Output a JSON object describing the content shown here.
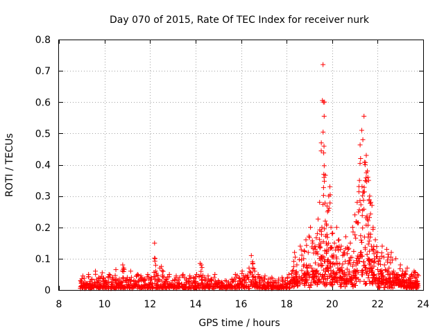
{
  "chart_data": {
    "type": "scatter",
    "title": "Day 070 of 2015, Rate Of TEC Index for receiver nurk",
    "xlabel": "GPS time / hours",
    "ylabel": "ROTI / TECUs",
    "xlim": [
      8,
      24
    ],
    "ylim": [
      0,
      0.8
    ],
    "x_ticks": [
      8,
      10,
      12,
      14,
      16,
      18,
      20,
      22,
      24
    ],
    "y_ticks": [
      0,
      0.1,
      0.2,
      0.3,
      0.4,
      0.5,
      0.6,
      0.7,
      0.8
    ],
    "x_tick_labels": [
      "8",
      "10",
      "12",
      "14",
      "16",
      "18",
      "20",
      "22",
      "24"
    ],
    "y_tick_labels": [
      "0",
      "0.1",
      "0.2",
      "0.3",
      "0.4",
      "0.5",
      "0.6",
      "0.7",
      "0.8"
    ],
    "grid": true,
    "marker": "+",
    "color": "#ff0000",
    "series": [
      {
        "x": [
          8.95,
          9.05,
          9.15,
          9.3,
          9.45,
          9.6,
          9.75,
          9.9,
          10.05,
          10.2,
          10.35,
          10.5,
          10.65,
          10.8,
          10.85,
          11.0,
          11.15,
          11.3,
          11.45,
          11.6,
          11.75,
          11.9,
          12.05,
          12.2,
          12.25,
          12.35,
          12.5,
          12.6,
          12.7,
          12.85,
          13.0,
          13.15,
          13.3,
          13.45,
          13.6,
          13.75,
          13.9,
          14.05,
          14.2,
          14.25,
          14.4,
          14.55,
          14.7,
          14.85,
          15.0,
          15.15,
          15.3,
          15.45,
          15.6,
          15.75,
          15.9,
          16.05,
          16.2,
          16.35,
          16.45,
          16.5,
          16.6,
          16.75,
          16.9,
          17.05,
          17.2,
          17.35,
          17.5,
          17.65,
          17.8,
          17.95,
          18.1,
          18.25,
          18.35,
          18.45,
          18.6,
          18.75,
          18.85,
          18.95,
          19.05,
          19.15,
          19.25,
          19.35,
          19.45,
          19.5,
          19.55,
          19.6,
          19.62,
          19.65,
          19.7,
          19.75,
          19.8,
          19.85,
          19.9,
          19.95,
          20.0,
          20.1,
          20.2,
          20.3,
          20.4,
          20.5,
          20.6,
          20.7,
          20.8,
          20.9,
          21.0,
          21.1,
          21.2,
          21.25,
          21.3,
          21.35,
          21.4,
          21.45,
          21.5,
          21.55,
          21.6,
          21.65,
          21.7,
          21.75,
          21.8,
          21.9,
          22.0,
          22.1,
          22.2,
          22.3,
          22.4,
          22.5,
          22.6,
          22.7,
          22.8,
          22.9,
          23.0,
          23.1,
          23.2,
          23.3,
          23.4,
          23.5,
          23.6,
          23.7,
          23.75
        ],
        "y": [
          0.03,
          0.045,
          0.025,
          0.05,
          0.035,
          0.06,
          0.04,
          0.055,
          0.03,
          0.05,
          0.04,
          0.065,
          0.035,
          0.08,
          0.07,
          0.04,
          0.06,
          0.03,
          0.05,
          0.045,
          0.035,
          0.05,
          0.04,
          0.15,
          0.06,
          0.045,
          0.075,
          0.04,
          0.035,
          0.05,
          0.03,
          0.045,
          0.04,
          0.05,
          0.035,
          0.045,
          0.04,
          0.05,
          0.085,
          0.08,
          0.04,
          0.045,
          0.035,
          0.05,
          0.03,
          0.025,
          0.03,
          0.025,
          0.035,
          0.05,
          0.04,
          0.06,
          0.045,
          0.07,
          0.11,
          0.09,
          0.06,
          0.05,
          0.04,
          0.045,
          0.035,
          0.04,
          0.03,
          0.035,
          0.04,
          0.03,
          0.05,
          0.06,
          0.12,
          0.08,
          0.14,
          0.1,
          0.16,
          0.12,
          0.2,
          0.15,
          0.13,
          0.18,
          0.28,
          0.15,
          0.2,
          0.72,
          0.6,
          0.555,
          0.22,
          0.15,
          0.25,
          0.3,
          0.33,
          0.2,
          0.18,
          0.15,
          0.2,
          0.16,
          0.14,
          0.12,
          0.17,
          0.13,
          0.15,
          0.2,
          0.24,
          0.28,
          0.35,
          0.42,
          0.51,
          0.48,
          0.555,
          0.4,
          0.43,
          0.38,
          0.35,
          0.3,
          0.28,
          0.27,
          0.2,
          0.16,
          0.12,
          0.1,
          0.14,
          0.08,
          0.13,
          0.07,
          0.12,
          0.06,
          0.1,
          0.05,
          0.08,
          0.06,
          0.05,
          0.07,
          0.04,
          0.05,
          0.06,
          0.04,
          0.05
        ]
      },
      {
        "x": [
          8.95,
          9.1,
          9.25,
          9.4,
          9.55,
          9.7,
          9.85,
          10.0,
          10.15,
          10.3,
          10.45,
          10.6,
          10.75,
          10.9,
          11.05,
          11.2,
          11.35,
          11.5,
          11.65,
          11.8,
          11.95,
          12.1,
          12.3,
          12.45,
          12.6,
          12.8,
          12.95,
          13.1,
          13.25,
          13.4,
          13.55,
          13.7,
          13.85,
          14.0,
          14.15,
          14.35,
          14.5,
          14.65,
          14.8,
          14.95,
          15.1,
          15.25,
          15.4,
          15.55,
          15.7,
          15.85,
          16.0,
          16.15,
          16.3,
          16.55,
          16.7,
          16.85,
          17.0,
          17.15,
          17.3,
          17.45,
          17.6,
          17.75,
          17.9,
          18.05,
          18.2,
          18.3,
          18.4,
          18.5,
          18.65,
          18.8,
          18.9,
          19.0,
          19.1,
          19.2,
          19.3,
          19.4,
          19.58,
          19.68,
          19.78,
          19.88,
          19.98,
          20.05,
          20.15,
          20.25,
          20.35,
          20.45,
          20.55,
          20.65,
          20.75,
          20.85,
          20.95,
          21.05,
          21.15,
          21.28,
          21.38,
          21.48,
          21.58,
          21.68,
          21.78,
          21.85,
          21.95,
          22.05,
          22.15,
          22.25,
          22.35,
          22.45,
          22.55,
          22.65,
          22.75,
          22.85,
          22.95,
          23.05,
          23.15,
          23.25,
          23.35,
          23.45,
          23.55,
          23.65,
          23.72
        ],
        "y": [
          0.01,
          0.015,
          0.02,
          0.012,
          0.018,
          0.01,
          0.02,
          0.015,
          0.012,
          0.018,
          0.01,
          0.02,
          0.015,
          0.012,
          0.018,
          0.01,
          0.02,
          0.015,
          0.012,
          0.018,
          0.01,
          0.02,
          0.015,
          0.012,
          0.018,
          0.01,
          0.02,
          0.015,
          0.012,
          0.018,
          0.01,
          0.02,
          0.015,
          0.012,
          0.018,
          0.01,
          0.02,
          0.015,
          0.012,
          0.018,
          0.01,
          0.012,
          0.01,
          0.015,
          0.012,
          0.018,
          0.02,
          0.015,
          0.012,
          0.02,
          0.018,
          0.015,
          0.012,
          0.01,
          0.015,
          0.012,
          0.01,
          0.015,
          0.012,
          0.02,
          0.03,
          0.04,
          0.05,
          0.03,
          0.04,
          0.05,
          0.06,
          0.04,
          0.07,
          0.05,
          0.06,
          0.08,
          0.1,
          0.05,
          0.07,
          0.09,
          0.04,
          0.06,
          0.05,
          0.07,
          0.04,
          0.06,
          0.05,
          0.03,
          0.05,
          0.04,
          0.06,
          0.08,
          0.1,
          0.12,
          0.09,
          0.07,
          0.1,
          0.08,
          0.06,
          0.05,
          0.04,
          0.03,
          0.05,
          0.04,
          0.03,
          0.05,
          0.04,
          0.03,
          0.05,
          0.04,
          0.03,
          0.02,
          0.04,
          0.03,
          0.02,
          0.03,
          0.02,
          0.03,
          0.02
        ]
      }
    ]
  }
}
